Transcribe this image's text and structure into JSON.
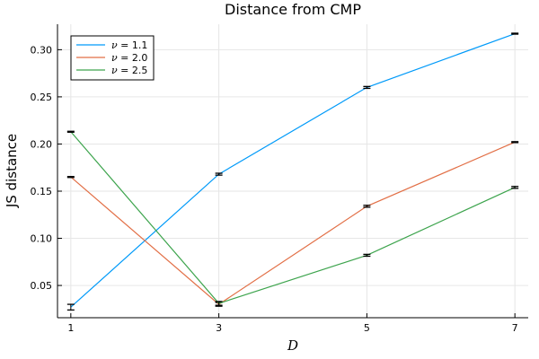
{
  "chart_data": {
    "type": "line",
    "title": "Distance from CMP",
    "xlabel": "D",
    "ylabel": "JS distance",
    "x": [
      1,
      3,
      5,
      7
    ],
    "xticks": [
      1,
      3,
      5,
      7
    ],
    "xtick_labels": [
      "1",
      "3",
      "5",
      "7"
    ],
    "xlim": [
      0.82,
      7.18
    ],
    "yticks": [
      0.05,
      0.1,
      0.15,
      0.2,
      0.25,
      0.3
    ],
    "ytick_labels": [
      "0.05",
      "0.10",
      "0.15",
      "0.20",
      "0.25",
      "0.30"
    ],
    "ylim": [
      0.0158,
      0.327
    ],
    "grid": true,
    "legend_position": "top-left",
    "series": [
      {
        "name_prefix": "ν = ",
        "name_value": "1.1",
        "color": "#009af9",
        "values": [
          0.027,
          0.168,
          0.26,
          0.317
        ],
        "errors": [
          0.003,
          0.001,
          0.001,
          0.0005
        ]
      },
      {
        "name_prefix": "ν = ",
        "name_value": "2.0",
        "color": "#e26f46",
        "values": [
          0.165,
          0.03,
          0.134,
          0.202
        ],
        "errors": [
          0.0005,
          0.002,
          0.001,
          0.0005
        ]
      },
      {
        "name_prefix": "ν = ",
        "name_value": "2.5",
        "color": "#3da44d",
        "values": [
          0.213,
          0.031,
          0.082,
          0.154
        ],
        "errors": [
          0.0005,
          0.002,
          0.001,
          0.001
        ]
      }
    ]
  }
}
